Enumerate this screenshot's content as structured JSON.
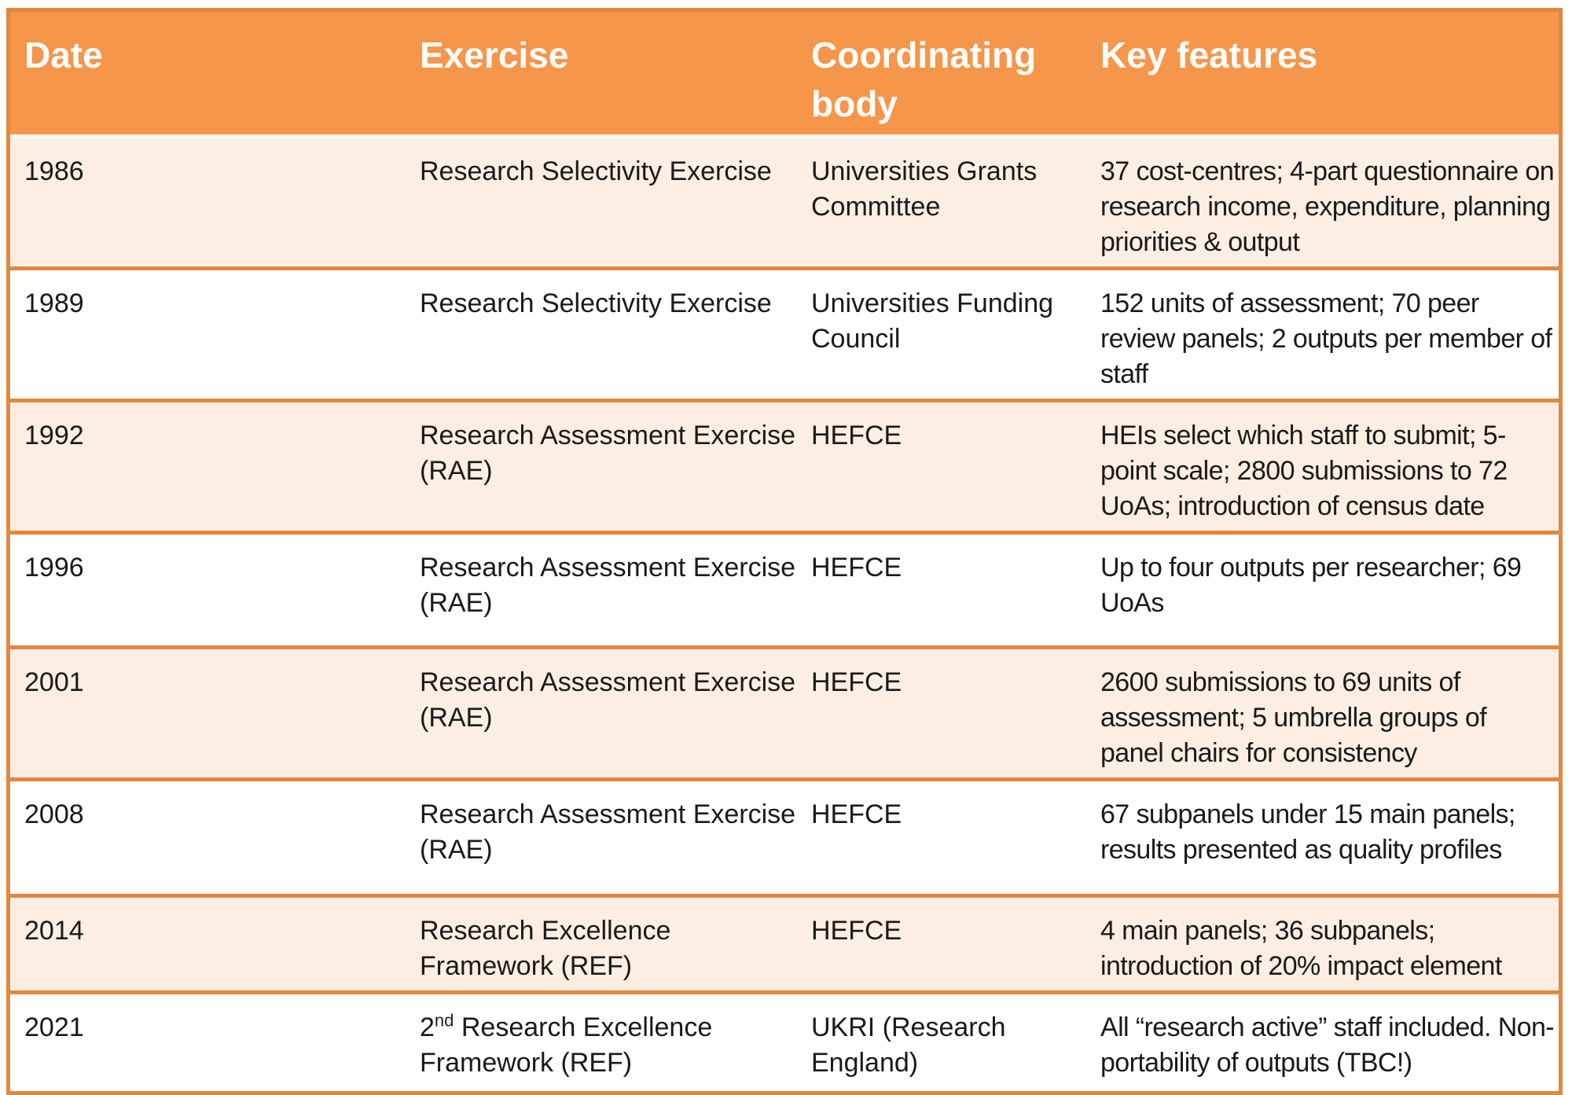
{
  "table": {
    "title_semantic": "UK research assessment exercises history",
    "columns": [
      "Date",
      "Exercise",
      "Coordinating body",
      "Key features"
    ],
    "rows": [
      {
        "date": "1986",
        "exercise": "Research Selectivity Exercise",
        "body": "Universities Grants Committee",
        "features": "37 cost-centres; 4-part questionnaire on research income, expenditure, planning priorities & output"
      },
      {
        "date": "1989",
        "exercise": "Research Selectivity Exercise",
        "body": "Universities Funding Council",
        "features": "152 units of assessment; 70 peer review panels; 2 outputs per member of staff"
      },
      {
        "date": "1992",
        "exercise": "Research Assessment Exercise (RAE)",
        "body": "HEFCE",
        "features": "HEIs select which staff to submit; 5-point scale; 2800 submissions to 72 UoAs; introduction of census date"
      },
      {
        "date": "1996",
        "exercise": "Research Assessment Exercise (RAE)",
        "body": "HEFCE",
        "features": "Up to four outputs per researcher; 69 UoAs"
      },
      {
        "date": "2001",
        "exercise": "Research Assessment Exercise (RAE)",
        "body": "HEFCE",
        "features": "2600 submissions to 69 units of assessment; 5 umbrella groups of panel chairs for consistency"
      },
      {
        "date": "2008",
        "exercise": "Research Assessment Exercise (RAE)",
        "body": "HEFCE",
        "features": "67 subpanels under 15 main panels; results presented as quality profiles"
      },
      {
        "date": "2014",
        "exercise": "Research Excellence Framework (REF)",
        "body": "HEFCE",
        "features": "4 main panels; 36 subpanels; introduction of 20% impact element"
      },
      {
        "date": "2021",
        "exercise_prefix": "2",
        "exercise_sup": "nd",
        "exercise_rest": " Research Excellence Framework (REF)",
        "body": "UKRI (Research England)",
        "features": "All “research active” staff included. Non-portability of outputs (TBC!)"
      }
    ]
  },
  "colors": {
    "header_bg": "#F6964A",
    "row_alt_bg": "#FCEEE3",
    "row_bg": "#FFFFFF",
    "rule_and_border": "#E1883E",
    "header_text": "#FFFFFF",
    "body_text": "#1A1A1A"
  }
}
